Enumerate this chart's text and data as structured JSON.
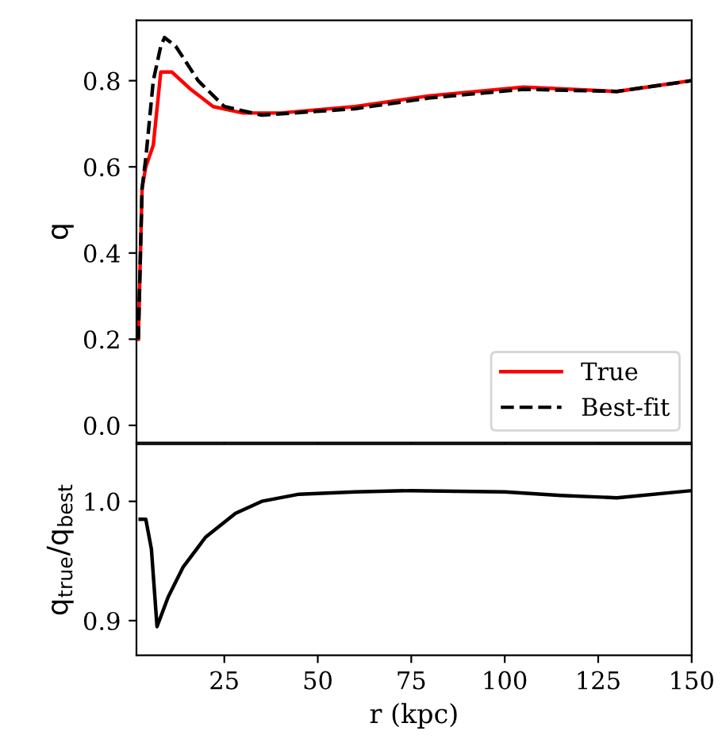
{
  "chart_data": [
    {
      "type": "line",
      "ylabel": "q",
      "xlim": [
        1.5,
        150
      ],
      "xticks": [
        25,
        50,
        75,
        100,
        125,
        150
      ],
      "ylim": [
        -0.04,
        0.94
      ],
      "yticks": [
        {
          "value": 0,
          "label": "0.0"
        },
        0.2,
        0.4,
        0.6,
        0.8
      ],
      "tick_labels": "y",
      "legend": "bottom right",
      "grid": false,
      "series": [
        {
          "name": "True",
          "color": "#ff0000",
          "line_style": "solid",
          "x": [
            2,
            3,
            4,
            6,
            8,
            11,
            16,
            22,
            30,
            40,
            60,
            80,
            105,
            130,
            150
          ],
          "values": [
            0.2,
            0.55,
            0.6,
            0.65,
            0.82,
            0.82,
            0.78,
            0.74,
            0.725,
            0.725,
            0.74,
            0.765,
            0.785,
            0.775,
            0.8
          ]
        },
        {
          "name": "Best-fit",
          "color": "#000000",
          "line_style": "dashed",
          "x": [
            2,
            3,
            4,
            6,
            8,
            9,
            12,
            18,
            25,
            35,
            60,
            80,
            105,
            130,
            150
          ],
          "values": [
            0.2,
            0.55,
            0.62,
            0.8,
            0.88,
            0.9,
            0.88,
            0.8,
            0.74,
            0.72,
            0.735,
            0.76,
            0.78,
            0.775,
            0.8
          ]
        }
      ]
    },
    {
      "type": "line",
      "xlabel": "r (kpc)",
      "ylabel": "q$_{true}$/q$_{best}$",
      "xlim": [
        1.5,
        150
      ],
      "xticks": [
        25,
        50,
        75,
        100,
        125,
        150
      ],
      "ylim": [
        0.871,
        1.048
      ],
      "yticks": [
        0.9,
        {
          "value": 1,
          "label": "1.0"
        }
      ],
      "grid": false,
      "series": [
        {
          "color": "#000000",
          "line_style": "solid",
          "x": [
            2.5,
            4,
            5.5,
            7,
            10,
            14,
            20,
            28,
            35,
            45,
            60,
            75,
            100,
            115,
            130,
            150
          ],
          "values": [
            0.985,
            0.985,
            0.96,
            0.895,
            0.92,
            0.945,
            0.97,
            0.99,
            1.0,
            1.006,
            1.008,
            1.009,
            1.008,
            1.005,
            1.003,
            1.009
          ]
        }
      ]
    }
  ]
}
